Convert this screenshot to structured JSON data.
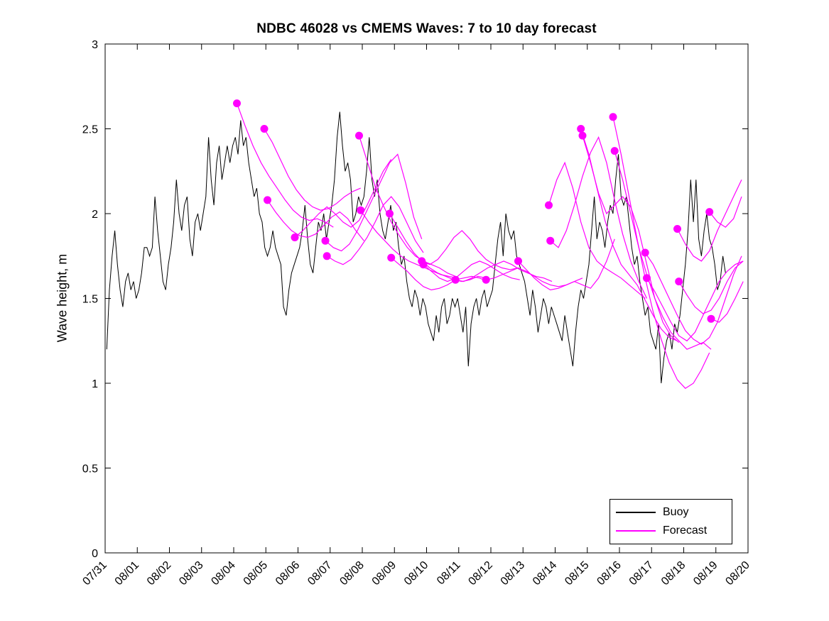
{
  "chart_data": {
    "type": "line",
    "title": "NDBC 46028 vs CMEMS Waves: 7 to 10 day forecast",
    "xlabel": "",
    "ylabel": "Wave height, m",
    "xlim": [
      0,
      20
    ],
    "ylim": [
      0,
      3
    ],
    "grid": false,
    "background_color": "#ffffff",
    "axes_color": "#000000",
    "x_ticks": [
      0,
      1,
      2,
      3,
      4,
      5,
      6,
      7,
      8,
      9,
      10,
      11,
      12,
      13,
      14,
      15,
      16,
      17,
      18,
      19,
      20
    ],
    "x_tick_labels": [
      "07/31",
      "08/01",
      "08/02",
      "08/03",
      "08/04",
      "08/05",
      "08/06",
      "08/07",
      "08/08",
      "08/09",
      "08/10",
      "08/11",
      "08/12",
      "08/13",
      "08/14",
      "08/15",
      "08/16",
      "08/17",
      "08/18",
      "08/19",
      "08/20"
    ],
    "y_ticks": [
      0,
      0.5,
      1,
      1.5,
      2,
      2.5,
      3
    ],
    "y_tick_labels": [
      "0",
      "0.5",
      "1",
      "1.5",
      "2",
      "2.5",
      "3"
    ],
    "legend": {
      "position": "bottom-right",
      "entries": [
        {
          "label": "Buoy",
          "color": "#000000"
        },
        {
          "label": "Forecast",
          "color": "#ff00ff"
        }
      ]
    },
    "series": {
      "buoy": {
        "name": "Buoy",
        "color": "#000000",
        "start_day": 0.05,
        "dt_days": 0.083333,
        "values": [
          1.2,
          1.55,
          1.75,
          1.9,
          1.7,
          1.55,
          1.45,
          1.6,
          1.65,
          1.55,
          1.6,
          1.5,
          1.55,
          1.65,
          1.8,
          1.8,
          1.75,
          1.8,
          2.1,
          1.9,
          1.75,
          1.6,
          1.55,
          1.7,
          1.8,
          1.95,
          2.2,
          2.0,
          1.9,
          2.05,
          2.1,
          1.85,
          1.75,
          1.95,
          2.0,
          1.9,
          2.0,
          2.1,
          2.45,
          2.2,
          2.05,
          2.3,
          2.4,
          2.2,
          2.3,
          2.4,
          2.3,
          2.4,
          2.45,
          2.35,
          2.55,
          2.4,
          2.45,
          2.3,
          2.2,
          2.1,
          2.15,
          2.0,
          1.95,
          1.8,
          1.75,
          1.8,
          1.9,
          1.8,
          1.75,
          1.7,
          1.45,
          1.4,
          1.55,
          1.65,
          1.7,
          1.75,
          1.8,
          1.9,
          2.05,
          1.85,
          1.7,
          1.65,
          1.8,
          1.95,
          1.9,
          2.0,
          1.85,
          1.95,
          2.05,
          2.2,
          2.45,
          2.6,
          2.4,
          2.25,
          2.3,
          2.2,
          1.95,
          2.0,
          2.1,
          2.05,
          2.1,
          2.25,
          2.45,
          2.2,
          2.1,
          2.2,
          2.0,
          1.9,
          1.85,
          1.95,
          2.05,
          1.9,
          1.95,
          1.8,
          1.7,
          1.75,
          1.6,
          1.5,
          1.45,
          1.55,
          1.5,
          1.4,
          1.5,
          1.45,
          1.35,
          1.3,
          1.25,
          1.4,
          1.3,
          1.45,
          1.5,
          1.35,
          1.4,
          1.5,
          1.45,
          1.5,
          1.4,
          1.3,
          1.45,
          1.1,
          1.35,
          1.45,
          1.5,
          1.4,
          1.5,
          1.55,
          1.45,
          1.5,
          1.55,
          1.7,
          1.85,
          1.95,
          1.75,
          2.0,
          1.9,
          1.85,
          1.9,
          1.75,
          1.7,
          1.65,
          1.6,
          1.5,
          1.4,
          1.55,
          1.45,
          1.3,
          1.4,
          1.5,
          1.45,
          1.35,
          1.45,
          1.4,
          1.35,
          1.3,
          1.25,
          1.4,
          1.3,
          1.2,
          1.1,
          1.3,
          1.45,
          1.55,
          1.5,
          1.6,
          1.7,
          1.9,
          2.1,
          1.85,
          1.95,
          1.9,
          1.8,
          1.95,
          2.05,
          2.0,
          2.2,
          2.35,
          2.1,
          2.05,
          2.1,
          1.95,
          1.8,
          1.7,
          1.75,
          1.6,
          1.5,
          1.4,
          1.45,
          1.3,
          1.25,
          1.2,
          1.35,
          1.0,
          1.15,
          1.25,
          1.3,
          1.2,
          1.35,
          1.3,
          1.4,
          1.55,
          1.7,
          1.9,
          2.2,
          1.95,
          2.2,
          1.85,
          1.75,
          1.9,
          2.0,
          1.85,
          1.8,
          1.7,
          1.55,
          1.6,
          1.75,
          1.65
        ]
      },
      "forecast": {
        "name": "Forecast",
        "color": "#ff00ff",
        "marker": "filled-circle-at-start",
        "dt_days": 0.25,
        "segments": [
          {
            "start_day": 4.1,
            "values": [
              2.65,
              2.52,
              2.4,
              2.3,
              2.22,
              2.15,
              2.08,
              2.02,
              1.98,
              1.96,
              1.97,
              1.95,
              1.92
            ]
          },
          {
            "start_day": 4.95,
            "values": [
              2.5,
              2.42,
              2.32,
              2.22,
              2.14,
              2.08,
              2.04,
              2.02,
              2.03,
              2.06,
              2.1,
              2.13,
              2.15
            ]
          },
          {
            "start_day": 5.05,
            "values": [
              2.08,
              2.01,
              1.95,
              1.9,
              1.87,
              1.86,
              1.88,
              1.93,
              1.98,
              2.01,
              1.97,
              1.9,
              1.84
            ]
          },
          {
            "start_day": 5.9,
            "values": [
              1.86,
              1.9,
              1.95,
              2.0,
              2.04,
              2.0,
              1.95,
              1.92,
              1.96,
              2.05,
              2.15,
              2.25,
              2.32
            ]
          },
          {
            "start_day": 6.85,
            "values": [
              1.84,
              1.8,
              1.78,
              1.82,
              1.9,
              2.0,
              2.1,
              2.2,
              2.3,
              2.35,
              2.18,
              1.98,
              1.85
            ]
          },
          {
            "start_day": 6.9,
            "values": [
              1.75,
              1.72,
              1.7,
              1.73,
              1.79,
              1.86,
              1.95,
              2.05,
              2.1,
              2.04,
              1.94,
              1.84,
              1.77
            ]
          },
          {
            "start_day": 7.9,
            "values": [
              2.46,
              2.31,
              2.16,
              2.05,
              1.95,
              1.87,
              1.8,
              1.75,
              1.72,
              1.7,
              1.68,
              1.65,
              1.63
            ]
          },
          {
            "start_day": 7.95,
            "values": [
              2.02,
              1.95,
              1.89,
              1.84,
              1.79,
              1.75,
              1.72,
              1.7,
              1.68,
              1.66,
              1.64,
              1.63,
              1.62
            ]
          },
          {
            "start_day": 8.85,
            "values": [
              2.0,
              1.92,
              1.84,
              1.77,
              1.72,
              1.68,
              1.65,
              1.63,
              1.61,
              1.6,
              1.61,
              1.63,
              1.62
            ]
          },
          {
            "start_day": 8.9,
            "values": [
              1.74,
              1.7,
              1.66,
              1.61,
              1.57,
              1.55,
              1.56,
              1.58,
              1.61,
              1.62,
              1.63,
              1.62,
              1.6
            ]
          },
          {
            "start_day": 9.85,
            "values": [
              1.72,
              1.7,
              1.73,
              1.79,
              1.86,
              1.9,
              1.85,
              1.78,
              1.73,
              1.7,
              1.68,
              1.67,
              1.68
            ]
          },
          {
            "start_day": 9.9,
            "values": [
              1.7,
              1.66,
              1.62,
              1.6,
              1.62,
              1.66,
              1.7,
              1.72,
              1.7,
              1.67,
              1.64,
              1.62,
              1.61
            ]
          },
          {
            "start_day": 10.9,
            "values": [
              1.61,
              1.6,
              1.62,
              1.65,
              1.68,
              1.7,
              1.72,
              1.7,
              1.67,
              1.65,
              1.63,
              1.62,
              1.6
            ]
          },
          {
            "start_day": 11.85,
            "values": [
              1.61,
              1.62,
              1.64,
              1.66,
              1.68,
              1.66,
              1.63,
              1.6,
              1.58,
              1.57,
              1.58,
              1.6,
              1.62
            ]
          },
          {
            "start_day": 12.85,
            "values": [
              1.72,
              1.67,
              1.62,
              1.58,
              1.55,
              1.56,
              1.58,
              1.6,
              1.58,
              1.56,
              1.62,
              1.72,
              1.85
            ]
          },
          {
            "start_day": 13.8,
            "values": [
              2.05,
              2.2,
              2.3,
              2.15,
              1.95,
              1.8,
              1.72,
              1.68,
              1.65,
              1.62,
              1.58,
              1.54,
              1.5
            ]
          },
          {
            "start_day": 13.85,
            "values": [
              1.84,
              1.8,
              1.9,
              2.05,
              2.22,
              2.36,
              2.45,
              2.3,
              2.08,
              1.88,
              1.72,
              1.6,
              1.5
            ]
          },
          {
            "start_day": 14.8,
            "values": [
              2.5,
              2.35,
              2.15,
              1.96,
              1.81,
              1.7,
              1.64,
              1.58,
              1.49,
              1.4,
              1.32,
              1.27,
              1.25
            ]
          },
          {
            "start_day": 14.85,
            "values": [
              2.46,
              2.3,
              2.12,
              2.0,
              2.05,
              2.1,
              2.04,
              1.9,
              1.7,
              1.5,
              1.36,
              1.28,
              1.24
            ]
          },
          {
            "start_day": 15.8,
            "values": [
              2.57,
              2.35,
              2.1,
              1.85,
              1.62,
              1.42,
              1.26,
              1.12,
              1.02,
              0.97,
              1.0,
              1.08,
              1.18
            ]
          },
          {
            "start_day": 15.85,
            "values": [
              2.37,
              2.2,
              2.0,
              1.8,
              1.64,
              1.5,
              1.39,
              1.3,
              1.25,
              1.2,
              1.22,
              1.24,
              1.2
            ]
          },
          {
            "start_day": 16.8,
            "values": [
              1.77,
              1.7,
              1.6,
              1.5,
              1.4,
              1.31,
              1.26,
              1.23,
              1.27,
              1.36,
              1.5,
              1.64,
              1.75
            ]
          },
          {
            "start_day": 16.85,
            "values": [
              1.62,
              1.54,
              1.45,
              1.36,
              1.28,
              1.25,
              1.3,
              1.4,
              1.5,
              1.6,
              1.66,
              1.7,
              1.72
            ]
          },
          {
            "start_day": 17.8,
            "values": [
              1.91,
              1.82,
              1.75,
              1.72,
              1.78,
              1.9,
              2.0,
              2.1,
              2.2
            ]
          },
          {
            "start_day": 17.85,
            "values": [
              1.6,
              1.52,
              1.45,
              1.41,
              1.43,
              1.5,
              1.6,
              1.68,
              1.72
            ]
          },
          {
            "start_day": 18.8,
            "values": [
              2.01,
              1.95,
              1.92,
              1.97,
              2.1
            ]
          },
          {
            "start_day": 18.85,
            "values": [
              1.38,
              1.36,
              1.41,
              1.5,
              1.6
            ]
          }
        ]
      }
    }
  }
}
